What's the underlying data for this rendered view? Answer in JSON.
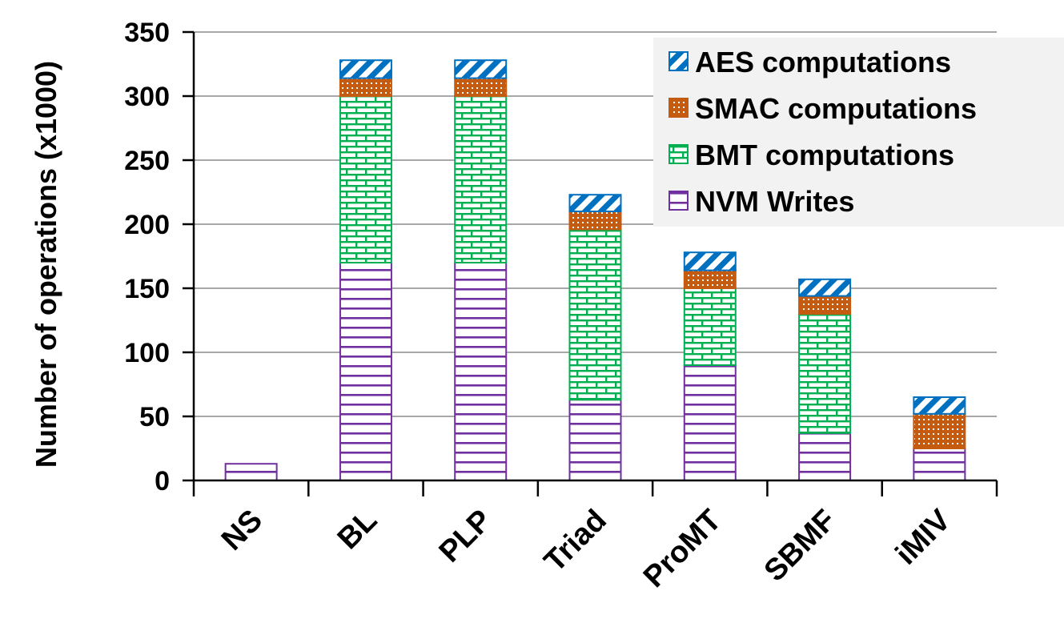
{
  "chart_data": {
    "type": "bar",
    "stacked": true,
    "title": "",
    "xlabel": "",
    "ylabel": "Number of operations (x1000)",
    "ylim": [
      0,
      350
    ],
    "yticks": [
      0,
      50,
      100,
      150,
      200,
      250,
      300,
      350
    ],
    "grid": true,
    "legend_position": "top-right",
    "categories": [
      "NS",
      "BL",
      "PLP",
      "Triad",
      "ProMT",
      "SBMF",
      "iMIV"
    ],
    "series": [
      {
        "name": "NVM Writes",
        "color": "#7030A0",
        "pattern": "horizontal-stripes",
        "values": [
          13,
          170,
          170,
          63,
          90,
          37,
          25
        ]
      },
      {
        "name": "BMT computations",
        "color": "#00B050",
        "pattern": "brick",
        "values": [
          0,
          130,
          130,
          133,
          60,
          93,
          0
        ]
      },
      {
        "name": "SMAC computations",
        "color": "#C55A11",
        "pattern": "dots",
        "values": [
          0,
          14,
          14,
          14,
          14,
          14,
          27
        ]
      },
      {
        "name": "AES computations",
        "color": "#0070C0",
        "pattern": "diagonal-stripes",
        "values": [
          0,
          14,
          14,
          13,
          14,
          13,
          13
        ]
      }
    ],
    "legend_order": [
      "AES computations",
      "SMAC computations",
      "BMT computations",
      "NVM Writes"
    ]
  }
}
